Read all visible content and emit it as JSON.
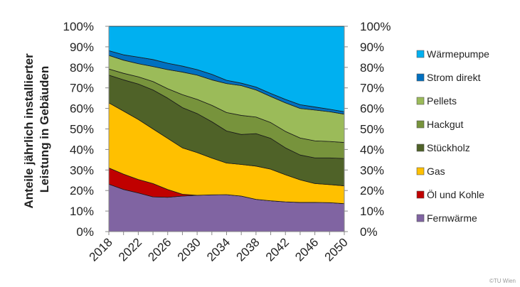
{
  "chart_data": {
    "type": "area",
    "stacked": true,
    "title": "",
    "ylabel": "Anteile jährlich installierter Leistung in Gebäuden",
    "ylabel_lines": [
      "Anteile jährlich installierter",
      "Leistung in Gebäuden"
    ],
    "xlabel": "",
    "ylim": [
      0,
      100
    ],
    "y_ticks": [
      "0%",
      "10%",
      "20%",
      "30%",
      "40%",
      "50%",
      "60%",
      "70%",
      "80%",
      "90%",
      "100%"
    ],
    "x": [
      2018,
      2020,
      2022,
      2024,
      2026,
      2028,
      2030,
      2032,
      2034,
      2036,
      2038,
      2040,
      2042,
      2044,
      2046,
      2048,
      2050
    ],
    "x_tick_labels": [
      "2018",
      "2022",
      "2026",
      "2030",
      "2034",
      "2038",
      "2042",
      "2046",
      "2050"
    ],
    "legend_position": "right",
    "series": [
      {
        "name": "Fernwärme",
        "color": "#8064A2",
        "values": [
          23.1,
          20.5,
          18.8,
          16.9,
          16.7,
          17.3,
          17.7,
          17.9,
          18.0,
          17.3,
          15.7,
          15.0,
          14.5,
          14.2,
          14.2,
          14.1,
          13.6
        ]
      },
      {
        "name": "Öl und Kohle",
        "color": "#C00000",
        "values": [
          7.9,
          7.5,
          6.6,
          6.5,
          3.8,
          0.9,
          0,
          0,
          0,
          0,
          0,
          0,
          0,
          0,
          0,
          0,
          0
        ]
      },
      {
        "name": "Gas",
        "color": "#FFC000",
        "values": [
          31.7,
          30.7,
          29.2,
          26.6,
          24.9,
          22.6,
          20.8,
          17.9,
          15.4,
          15.4,
          16.2,
          15.4,
          13.2,
          11.0,
          9.2,
          8.8,
          8.7
        ]
      },
      {
        "name": "Stückholz",
        "color": "#4F6228",
        "values": [
          13.5,
          15.2,
          17.3,
          19.0,
          19.6,
          19.6,
          19.0,
          17.7,
          15.6,
          14.6,
          15.8,
          15.0,
          13.1,
          12.1,
          12.5,
          13.0,
          13.3
        ]
      },
      {
        "name": "Hackgut",
        "color": "#77933C",
        "values": [
          3.0,
          3.2,
          3.5,
          4.1,
          4.6,
          6.3,
          6.9,
          8.0,
          9.0,
          9.3,
          8.1,
          7.7,
          8.0,
          8.3,
          8.3,
          8.0,
          7.8
        ]
      },
      {
        "name": "Pellets",
        "color": "#9BBB59",
        "values": [
          6.6,
          6.4,
          6.4,
          7.3,
          9.3,
          11.0,
          11.8,
          12.4,
          14.1,
          14.5,
          13.2,
          12.7,
          13.9,
          14.4,
          15.0,
          14.5,
          13.8
        ]
      },
      {
        "name": "Strom direkt",
        "color": "#0070C0",
        "values": [
          2.3,
          2.6,
          3.2,
          3.4,
          3.1,
          2.9,
          2.7,
          2.7,
          1.6,
          1.2,
          1.4,
          1.5,
          1.7,
          1.8,
          1.5,
          1.2,
          1.2
        ]
      },
      {
        "name": "Wärmepumpe",
        "color": "#00B0F0",
        "values": [
          11.9,
          13.9,
          15.0,
          16.2,
          18.0,
          19.4,
          21.1,
          23.4,
          26.3,
          27.7,
          29.6,
          32.7,
          35.6,
          38.2,
          39.3,
          40.4,
          41.6
        ]
      }
    ]
  },
  "credit": "©TU Wien"
}
